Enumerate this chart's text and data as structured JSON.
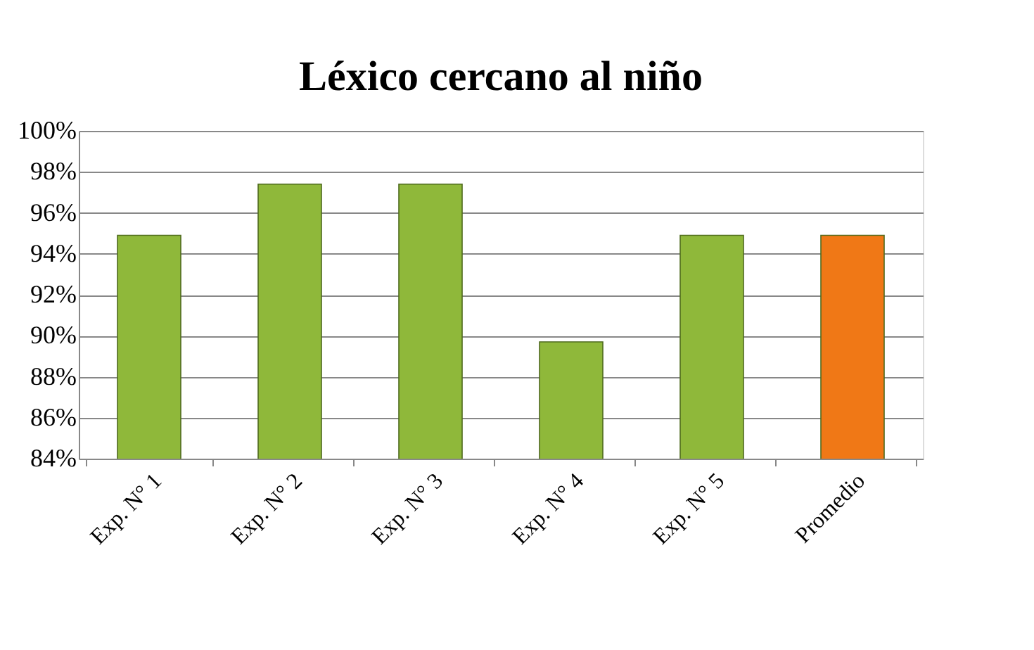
{
  "chart_data": {
    "type": "bar",
    "title": "Léxico cercano al niño",
    "categories": [
      "Exp. N° 1",
      "Exp. N° 2",
      "Exp. N° 3",
      "Exp. N° 4",
      "Exp. N° 5",
      "Promedio"
    ],
    "values": [
      94.9,
      97.4,
      97.4,
      89.7,
      94.9,
      94.9
    ],
    "colors": [
      "#8fb83a",
      "#8fb83a",
      "#8fb83a",
      "#8fb83a",
      "#8fb83a",
      "#f07816"
    ],
    "ylim": [
      84,
      100
    ],
    "yticks": [
      {
        "value": 84,
        "label": "84%"
      },
      {
        "value": 86,
        "label": "86%"
      },
      {
        "value": 88,
        "label": "88%"
      },
      {
        "value": 90,
        "label": "90%"
      },
      {
        "value": 92,
        "label": "92%"
      },
      {
        "value": 94,
        "label": "94%"
      },
      {
        "value": 96,
        "label": "96%"
      },
      {
        "value": 98,
        "label": "98%"
      },
      {
        "value": 100,
        "label": "100%"
      }
    ],
    "grid": "y"
  }
}
